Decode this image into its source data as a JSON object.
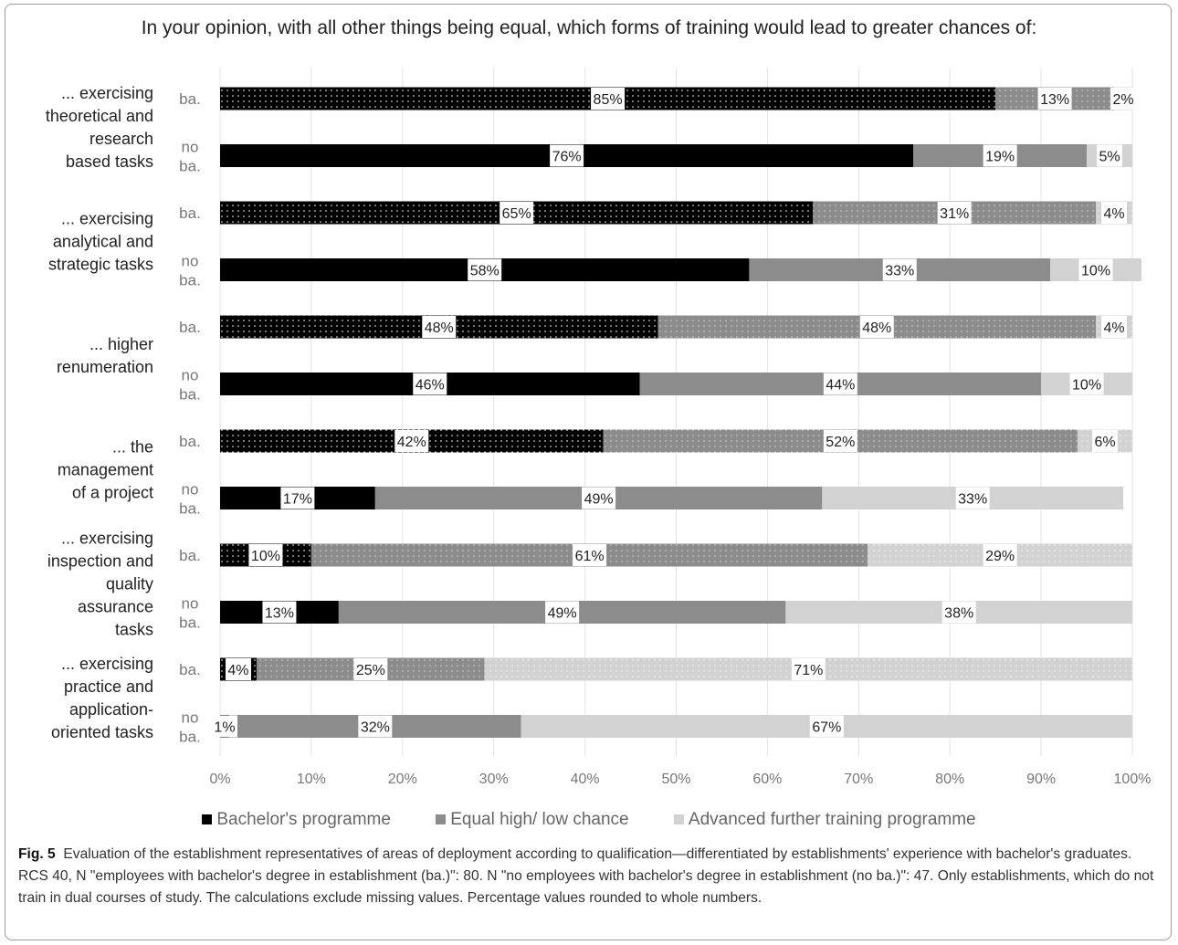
{
  "figure": {
    "caption_label": "Fig. 5",
    "caption_text": "Evaluation of the establishment representatives of areas of deployment according to qualification—differentiated by establishments' experience with bachelor's graduates. RCS 40, N \"employees with bachelor's degree in establishment (ba.)\": 80. N \"no employees with bachelor's degree in establishment (no ba.)\": 47. Only establishments, which do not train in dual courses of study. The calculations exclude missing values. Percentage values rounded to whole numbers."
  },
  "chart_data": {
    "type": "bar",
    "orientation": "horizontal",
    "stacked": "percent",
    "title": "In your opinion, with all other things being equal, which forms of training would lead to greater chances of:",
    "xlim": [
      0,
      100
    ],
    "x_ticks": [
      "0%",
      "10%",
      "20%",
      "30%",
      "40%",
      "50%",
      "60%",
      "70%",
      "80%",
      "90%",
      "100%"
    ],
    "grid": "vertical",
    "legend_position": "bottom",
    "groups": [
      {
        "label": "... exercising theoretical and research based tasks",
        "label_lines": [
          "... exercising",
          "theoretical and",
          "research",
          "based tasks"
        ]
      },
      {
        "label": "... exercising analytical and strategic tasks",
        "label_lines": [
          "... exercising",
          "analytical and",
          "strategic tasks"
        ]
      },
      {
        "label": "... higher renumeration",
        "label_lines": [
          "... higher",
          "renumeration"
        ]
      },
      {
        "label": "... the management of a project",
        "label_lines": [
          "... the",
          "management",
          "of a project"
        ]
      },
      {
        "label": "... exercising inspection and quality assurance tasks",
        "label_lines": [
          "... exercising",
          "inspection and",
          "quality",
          "assurance",
          "tasks"
        ]
      },
      {
        "label": "... exercising practice and application-oriented tasks",
        "label_lines": [
          "... exercising",
          "practice and",
          "application-",
          "oriented tasks"
        ]
      }
    ],
    "rows": [
      {
        "group": 0,
        "label": "ba.",
        "values": [
          85,
          13,
          2
        ]
      },
      {
        "group": 0,
        "label": "no ba.",
        "values": [
          76,
          19,
          5
        ]
      },
      {
        "group": 1,
        "label": "ba.",
        "values": [
          65,
          31,
          4
        ]
      },
      {
        "group": 1,
        "label": "no ba.",
        "values": [
          58,
          33,
          10
        ]
      },
      {
        "group": 2,
        "label": "ba.",
        "values": [
          48,
          48,
          4
        ]
      },
      {
        "group": 2,
        "label": "no ba.",
        "values": [
          46,
          44,
          10
        ]
      },
      {
        "group": 3,
        "label": "ba.",
        "values": [
          42,
          52,
          6
        ]
      },
      {
        "group": 3,
        "label": "no ba.",
        "values": [
          17,
          49,
          33
        ]
      },
      {
        "group": 4,
        "label": "ba.",
        "values": [
          10,
          61,
          29
        ]
      },
      {
        "group": 4,
        "label": "no ba.",
        "values": [
          13,
          49,
          38
        ]
      },
      {
        "group": 5,
        "label": "ba.",
        "values": [
          4,
          25,
          71
        ]
      },
      {
        "group": 5,
        "label": "no ba.",
        "values": [
          1,
          32,
          67
        ]
      }
    ],
    "series": [
      {
        "name": "Bachelor's programme",
        "color": "#000000"
      },
      {
        "name": "Equal high/ low chance",
        "color": "#8c8c8c"
      },
      {
        "name": "Advanced further training programme",
        "color": "#d2d2d2"
      }
    ],
    "ba_rows_pattern": "dotted"
  }
}
